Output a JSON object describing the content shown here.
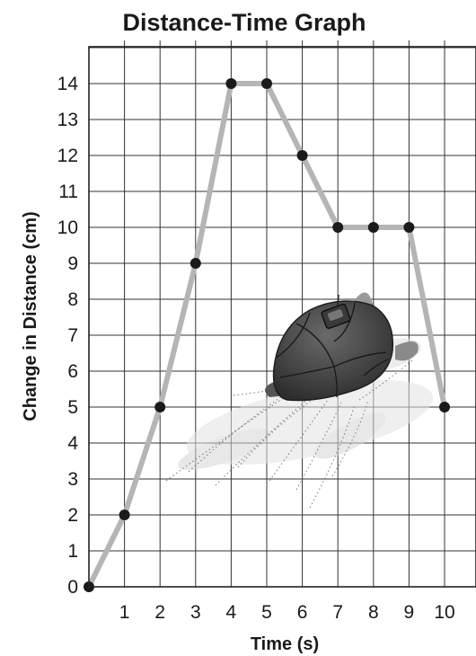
{
  "chart_data": {
    "type": "line",
    "title": "Distance-Time Graph",
    "xlabel": "Time (s)",
    "ylabel": "Change in Distance (cm)",
    "xlim": [
      0,
      10.9
    ],
    "ylim": [
      0,
      15.2
    ],
    "x_ticks": [
      "1",
      "2",
      "3",
      "4",
      "5",
      "6",
      "7",
      "8",
      "9",
      "10"
    ],
    "y_ticks": [
      "0",
      "1",
      "2",
      "3",
      "4",
      "5",
      "6",
      "7",
      "8",
      "9",
      "10",
      "11",
      "12",
      "13",
      "14"
    ],
    "grid": true,
    "legend": "none",
    "line_color": "#b5b5b5",
    "marker_color": "#1a1a1a",
    "series": [
      {
        "x": [
          0,
          1,
          2,
          3,
          4,
          5,
          6,
          7,
          8,
          9,
          10
        ],
        "y": [
          0,
          2,
          5,
          9,
          14,
          14,
          12,
          10,
          10,
          10,
          5
        ]
      }
    ],
    "illustration": "turtle-illustration"
  }
}
